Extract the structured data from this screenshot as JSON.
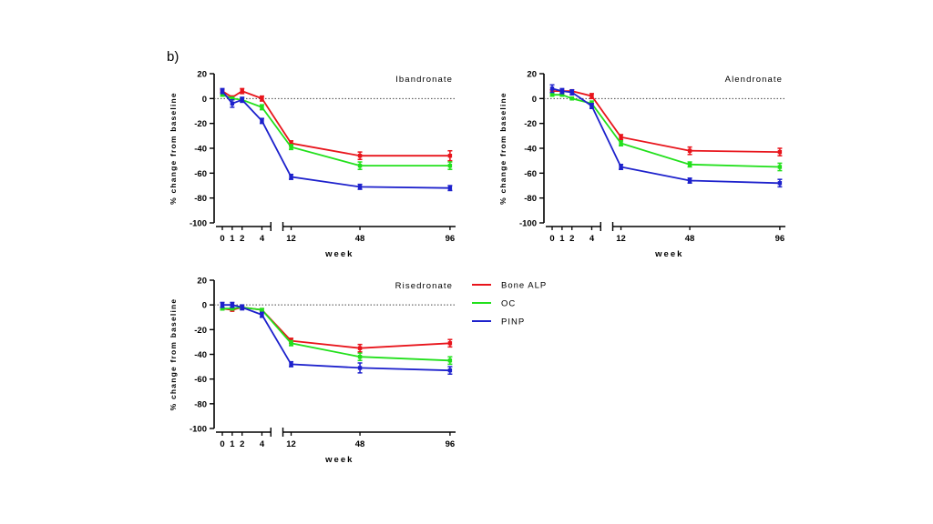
{
  "figure": {
    "panel_label": "b)"
  },
  "legend": {
    "items": [
      {
        "name": "Bone ALP",
        "color": "#e8141b"
      },
      {
        "name": "OC",
        "color": "#22e01c"
      },
      {
        "name": "PINP",
        "color": "#1d21cc"
      }
    ]
  },
  "chart_data": [
    {
      "type": "line",
      "title": "Ibandronate",
      "xlabel": "week",
      "ylabel": "% change from baseline",
      "x": [
        0,
        1,
        2,
        4,
        12,
        48,
        96
      ],
      "x_ticks": [
        "0",
        "1",
        "2",
        "4",
        "12",
        "48",
        "96"
      ],
      "x_axis_break": "between 4 and 12",
      "ylim": [
        -100,
        20
      ],
      "y_ticks": [
        20,
        0,
        -20,
        -40,
        -60,
        -80,
        -100
      ],
      "reference_line": {
        "y": 0,
        "style": "dotted"
      },
      "series": [
        {
          "name": "Bone ALP",
          "values": [
            6,
            1,
            6,
            0,
            -36,
            -46,
            -46
          ],
          "errors": [
            1,
            1,
            2,
            2,
            2,
            3,
            4
          ]
        },
        {
          "name": "OC",
          "values": [
            3,
            0,
            -1,
            -7,
            -39,
            -54,
            -54
          ],
          "errors": [
            1,
            1,
            1,
            2,
            2,
            3,
            3
          ]
        },
        {
          "name": "PINP",
          "values": [
            6,
            -4,
            -1,
            -18,
            -63,
            -71,
            -72
          ],
          "errors": [
            2,
            3,
            2,
            2,
            2,
            2,
            2
          ]
        }
      ]
    },
    {
      "type": "line",
      "title": "Alendronate",
      "xlabel": "week",
      "ylabel": "% change from baseline",
      "x": [
        0,
        1,
        2,
        4,
        12,
        48,
        96
      ],
      "x_ticks": [
        "0",
        "1",
        "2",
        "4",
        "12",
        "48",
        "96"
      ],
      "x_axis_break": "between 4 and 12",
      "ylim": [
        -100,
        20
      ],
      "y_ticks": [
        20,
        0,
        -20,
        -40,
        -60,
        -80,
        -100
      ],
      "reference_line": {
        "y": 0,
        "style": "dotted"
      },
      "series": [
        {
          "name": "Bone ALP",
          "values": [
            6,
            6,
            6,
            2,
            -31,
            -42,
            -43
          ],
          "errors": [
            1,
            1,
            1,
            2,
            2,
            3,
            3
          ]
        },
        {
          "name": "OC",
          "values": [
            3,
            3,
            0,
            -4,
            -36,
            -53,
            -55
          ],
          "errors": [
            1,
            1,
            1,
            2,
            2,
            2,
            3
          ]
        },
        {
          "name": "PINP",
          "values": [
            8,
            6,
            5,
            -6,
            -55,
            -66,
            -68
          ],
          "errors": [
            3,
            2,
            2,
            2,
            2,
            2,
            3
          ]
        }
      ]
    },
    {
      "type": "line",
      "title": "Risedronate",
      "xlabel": "week",
      "ylabel": "% change from baseline",
      "x": [
        0,
        1,
        2,
        4,
        12,
        48,
        96
      ],
      "x_ticks": [
        "0",
        "1",
        "2",
        "4",
        "12",
        "48",
        "96"
      ],
      "x_axis_break": "between 4 and 12",
      "ylim": [
        -100,
        20
      ],
      "y_ticks": [
        20,
        0,
        -20,
        -40,
        -60,
        -80,
        -100
      ],
      "reference_line": {
        "y": 0,
        "style": "dotted"
      },
      "series": [
        {
          "name": "Bone ALP",
          "values": [
            -3,
            -4,
            -2,
            -4,
            -29,
            -35,
            -31
          ],
          "errors": [
            1,
            1,
            1,
            1,
            2,
            3,
            3
          ]
        },
        {
          "name": "OC",
          "values": [
            -3,
            -3,
            -2,
            -4,
            -31,
            -42,
            -45
          ],
          "errors": [
            1,
            1,
            1,
            1,
            2,
            3,
            3
          ]
        },
        {
          "name": "PINP",
          "values": [
            0,
            0,
            -2,
            -8,
            -48,
            -51,
            -53
          ],
          "errors": [
            2,
            2,
            2,
            2,
            2,
            4,
            3
          ]
        }
      ]
    }
  ]
}
